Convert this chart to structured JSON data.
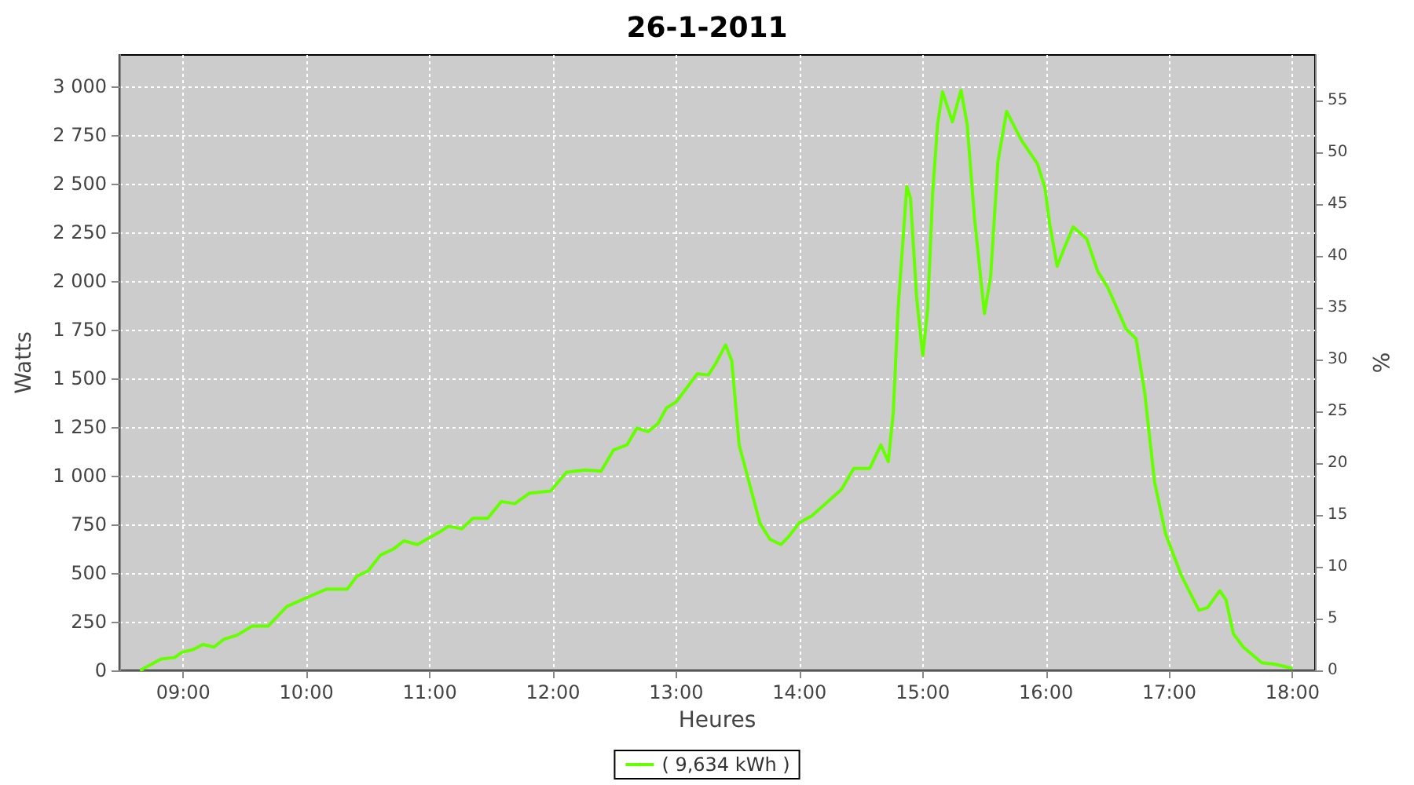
{
  "chart_data": {
    "type": "line",
    "title": "26-1-2011",
    "xlabel": "Heures",
    "ylabel": "Watts",
    "y2label": "%",
    "xlim": [
      8.482,
      18.182
    ],
    "xticks": [
      {
        "value": 9,
        "label": "09:00"
      },
      {
        "value": 10,
        "label": "10:00"
      },
      {
        "value": 11,
        "label": "11:00"
      },
      {
        "value": 12,
        "label": "12:00"
      },
      {
        "value": 13,
        "label": "13:00"
      },
      {
        "value": 14,
        "label": "14:00"
      },
      {
        "value": 15,
        "label": "15:00"
      },
      {
        "value": 16,
        "label": "16:00"
      },
      {
        "value": 17,
        "label": "17:00"
      },
      {
        "value": 18,
        "label": "18:00"
      }
    ],
    "ylim": [
      0,
      3160
    ],
    "yticks": [
      0,
      250,
      500,
      750,
      {
        "value": 1000,
        "label": "1 000"
      },
      {
        "value": 1250,
        "label": "1 250"
      },
      {
        "value": 1500,
        "label": "1 500"
      },
      {
        "value": 1750,
        "label": "1 750"
      },
      {
        "value": 2000,
        "label": "2 000"
      },
      {
        "value": 2250,
        "label": "2 250"
      },
      {
        "value": 2500,
        "label": "2 500"
      },
      {
        "value": 2750,
        "label": "2 750"
      },
      {
        "value": 3000,
        "label": "3 000"
      }
    ],
    "y2lim": [
      0,
      59.4
    ],
    "y2ticks": [
      0,
      5,
      10,
      15,
      20,
      25,
      30,
      35,
      40,
      45,
      50,
      55
    ],
    "grid": true,
    "legend": "bottom",
    "series": [
      {
        "name": "( 9,634 kWh )",
        "color": "#66ff00",
        "x": [
          8.65,
          8.82,
          8.93,
          8.99,
          9.08,
          9.16,
          9.25,
          9.33,
          9.44,
          9.56,
          9.69,
          9.84,
          10.01,
          10.16,
          10.33,
          10.41,
          10.5,
          10.6,
          10.71,
          10.79,
          10.9,
          11.01,
          11.09,
          11.15,
          11.26,
          11.35,
          11.47,
          11.58,
          11.69,
          11.81,
          11.98,
          12.11,
          12.26,
          12.39,
          12.49,
          12.6,
          12.68,
          12.77,
          12.85,
          12.92,
          13.0,
          13.09,
          13.17,
          13.26,
          13.32,
          13.4,
          13.45,
          13.51,
          13.6,
          13.68,
          13.76,
          13.85,
          13.91,
          14.0,
          14.1,
          14.23,
          14.34,
          14.44,
          14.57,
          14.66,
          14.72,
          14.76,
          14.8,
          14.87,
          14.9,
          14.95,
          15.0,
          15.04,
          15.08,
          15.12,
          15.16,
          15.24,
          15.31,
          15.36,
          15.42,
          15.5,
          15.55,
          15.61,
          15.68,
          15.8,
          15.93,
          15.99,
          16.03,
          16.09,
          16.14,
          16.22,
          16.33,
          16.42,
          16.5,
          16.65,
          16.73,
          16.8,
          16.88,
          16.97,
          17.1,
          17.24,
          17.31,
          17.41,
          17.46,
          17.52,
          17.6,
          17.75,
          17.86,
          18.0
        ],
        "values": [
          0,
          58,
          66,
          93,
          107,
          133,
          120,
          160,
          182,
          228,
          228,
          328,
          376,
          417,
          417,
          484,
          511,
          592,
          625,
          665,
          646,
          686,
          714,
          740,
          727,
          781,
          781,
          867,
          856,
          910,
          921,
          1018,
          1029,
          1023,
          1131,
          1158,
          1244,
          1226,
          1266,
          1347,
          1379,
          1455,
          1523,
          1517,
          1576,
          1671,
          1590,
          1158,
          943,
          754,
          673,
          646,
          686,
          759,
          794,
          867,
          929,
          1037,
          1037,
          1158,
          1072,
          1320,
          1859,
          2485,
          2425,
          1913,
          1616,
          1859,
          2453,
          2803,
          2971,
          2817,
          2979,
          2803,
          2318,
          1832,
          2021,
          2615,
          2870,
          2722,
          2601,
          2480,
          2291,
          2075,
          2156,
          2277,
          2215,
          2048,
          1967,
          1752,
          1703,
          1428,
          969,
          700,
          484,
          309,
          322,
          409,
          362,
          188,
          120,
          39,
          31,
          10
        ]
      }
    ]
  }
}
